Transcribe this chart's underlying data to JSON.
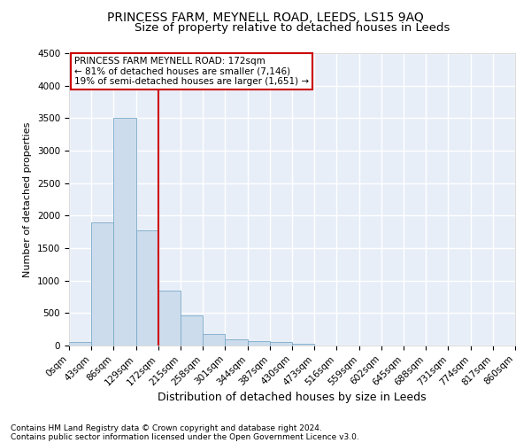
{
  "title1": "PRINCESS FARM, MEYNELL ROAD, LEEDS, LS15 9AQ",
  "title2": "Size of property relative to detached houses in Leeds",
  "xlabel": "Distribution of detached houses by size in Leeds",
  "ylabel": "Number of detached properties",
  "footer1": "Contains HM Land Registry data © Crown copyright and database right 2024.",
  "footer2": "Contains public sector information licensed under the Open Government Licence v3.0.",
  "bin_edges": [
    0,
    43,
    86,
    129,
    172,
    215,
    258,
    301,
    344,
    387,
    430,
    473,
    516,
    559,
    602,
    645,
    688,
    731,
    774,
    817,
    860
  ],
  "bar_heights": [
    50,
    1900,
    3500,
    1775,
    850,
    460,
    175,
    100,
    65,
    55,
    30,
    0,
    0,
    0,
    0,
    0,
    0,
    0,
    0,
    0
  ],
  "bar_color": "#ccdcec",
  "bar_edgecolor": "#7aaac8",
  "vline_x": 172,
  "vline_color": "#cc0000",
  "annotation_text": "PRINCESS FARM MEYNELL ROAD: 172sqm\n← 81% of detached houses are smaller (7,146)\n19% of semi-detached houses are larger (1,651) →",
  "annotation_box_color": "#cc0000",
  "ylim": [
    0,
    4500
  ],
  "yticks": [
    0,
    500,
    1000,
    1500,
    2000,
    2500,
    3000,
    3500,
    4000,
    4500
  ],
  "background_color": "#e8eef8",
  "grid_color": "#ffffff",
  "title1_fontsize": 10,
  "title2_fontsize": 9.5,
  "xlabel_fontsize": 9,
  "ylabel_fontsize": 8,
  "tick_fontsize": 7.5,
  "footer_fontsize": 6.5
}
